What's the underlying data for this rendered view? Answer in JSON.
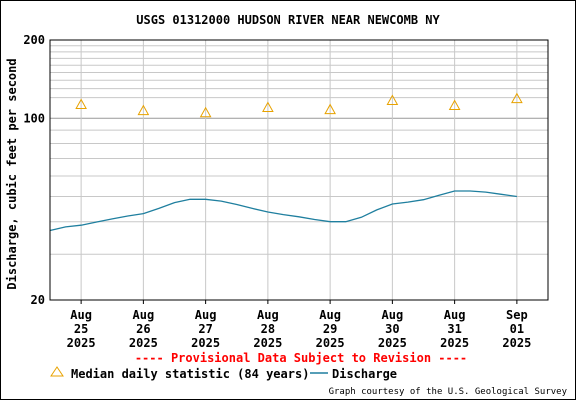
{
  "chart_data": {
    "type": "line",
    "title": "USGS 01312000 HUDSON RIVER NEAR NEWCOMB NY",
    "ylabel": "Discharge, cubic feet per second",
    "xlabel": "",
    "y_scale": "log",
    "ylim": [
      20,
      200
    ],
    "y_ticks": [
      {
        "value": 20,
        "label": "20"
      },
      {
        "value": 100,
        "label": "100"
      },
      {
        "value": 200,
        "label": "200"
      }
    ],
    "x_range": [
      "2025-08-24T12:00",
      "2025-09-01T12:00"
    ],
    "x_ticks": [
      {
        "date": "2025-08-25",
        "label": [
          "Aug",
          "25",
          "2025"
        ]
      },
      {
        "date": "2025-08-26",
        "label": [
          "Aug",
          "26",
          "2025"
        ]
      },
      {
        "date": "2025-08-27",
        "label": [
          "Aug",
          "27",
          "2025"
        ]
      },
      {
        "date": "2025-08-28",
        "label": [
          "Aug",
          "28",
          "2025"
        ]
      },
      {
        "date": "2025-08-29",
        "label": [
          "Aug",
          "29",
          "2025"
        ]
      },
      {
        "date": "2025-08-30",
        "label": [
          "Aug",
          "30",
          "2025"
        ]
      },
      {
        "date": "2025-08-31",
        "label": [
          "Aug",
          "31",
          "2025"
        ]
      },
      {
        "date": "2025-09-01",
        "label": [
          "Sep",
          "01",
          "2025"
        ]
      }
    ],
    "grid": true,
    "series": [
      {
        "name": "Discharge",
        "color": "#1f7f9f",
        "points": [
          [
            "2025-08-24T12:00",
            37.0
          ],
          [
            "2025-08-24T18:00",
            38.2
          ],
          [
            "2025-08-25T00:00",
            38.8
          ],
          [
            "2025-08-25T06:00",
            39.9
          ],
          [
            "2025-08-25T12:00",
            41.0
          ],
          [
            "2025-08-25T18:00",
            42.1
          ],
          [
            "2025-08-26T00:00",
            43.0
          ],
          [
            "2025-08-26T06:00",
            45.0
          ],
          [
            "2025-08-26T12:00",
            47.4
          ],
          [
            "2025-08-26T18:00",
            48.8
          ],
          [
            "2025-08-27T00:00",
            48.8
          ],
          [
            "2025-08-27T06:00",
            48.0
          ],
          [
            "2025-08-27T12:00",
            46.6
          ],
          [
            "2025-08-27T18:00",
            45.0
          ],
          [
            "2025-08-28T00:00",
            43.6
          ],
          [
            "2025-08-28T06:00",
            42.6
          ],
          [
            "2025-08-28T12:00",
            41.8
          ],
          [
            "2025-08-28T18:00",
            40.8
          ],
          [
            "2025-08-29T00:00",
            40.0
          ],
          [
            "2025-08-29T06:00",
            40.0
          ],
          [
            "2025-08-29T12:00",
            41.6
          ],
          [
            "2025-08-29T18:00",
            44.4
          ],
          [
            "2025-08-30T00:00",
            46.8
          ],
          [
            "2025-08-30T06:00",
            47.6
          ],
          [
            "2025-08-30T12:00",
            48.6
          ],
          [
            "2025-08-30T18:00",
            50.6
          ],
          [
            "2025-08-31T00:00",
            52.5
          ],
          [
            "2025-08-31T06:00",
            52.5
          ],
          [
            "2025-08-31T12:00",
            52.0
          ],
          [
            "2025-08-31T18:00",
            51.0
          ],
          [
            "2025-09-01T00:00",
            50.0
          ]
        ]
      },
      {
        "name": "Median daily statistic (84 years)",
        "color": "#e8a200",
        "marker": "triangle",
        "points": [
          [
            "2025-08-25",
            113
          ],
          [
            "2025-08-26",
            107
          ],
          [
            "2025-08-27",
            105
          ],
          [
            "2025-08-28",
            110
          ],
          [
            "2025-08-29",
            108
          ],
          [
            "2025-08-30",
            117
          ],
          [
            "2025-08-31",
            112
          ],
          [
            "2025-09-01",
            119
          ]
        ]
      }
    ]
  },
  "notice": "---- Provisional Data Subject to Revision ----",
  "legend": {
    "median_label": "Median daily statistic (84 years)",
    "discharge_label": "Discharge"
  },
  "credit": "Graph courtesy of the U.S. Geological Survey",
  "colors": {
    "grid": "#c8c8c8",
    "notice": "#ff0000",
    "discharge": "#1f7f9f",
    "median": "#e8a200"
  }
}
